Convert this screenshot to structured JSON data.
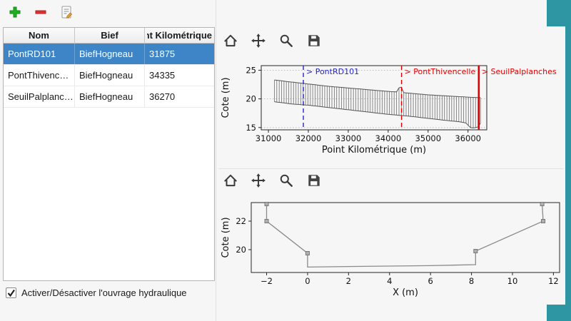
{
  "colors": {
    "accent": "#2e96a3",
    "selection": "#3d85c6",
    "marker_blue": "#2424d0",
    "marker_red": "#e00000"
  },
  "toolbar": {
    "buttons": [
      "add",
      "remove",
      "edit"
    ]
  },
  "table": {
    "columns": [
      "Nom",
      "Bief",
      "Point Kilométrique"
    ],
    "rows": [
      {
        "nom": "PontRD101",
        "bief": "BiefHogneau",
        "pk": "31875",
        "selected": true
      },
      {
        "nom": "PontThivenc…",
        "bief": "BiefHogneau",
        "pk": "34335",
        "selected": false
      },
      {
        "nom": "SeuilPalplanc…",
        "bief": "BiefHogneau",
        "pk": "36270",
        "selected": false
      }
    ]
  },
  "checkbox": {
    "label": "Activer/Désactiver l'ouvrage hydraulique",
    "checked": true
  },
  "plot_toolbar_icons": [
    "home",
    "pan",
    "zoom",
    "save"
  ],
  "chart_data": [
    {
      "type": "line",
      "title": "",
      "xlabel": "Point Kilométrique (m)",
      "ylabel": "Cote (m)",
      "xlim": [
        30820,
        36470
      ],
      "ylim": [
        14.6,
        25.8
      ],
      "xticks": [
        31000,
        32000,
        33000,
        34000,
        35000,
        36000
      ],
      "yticks": [
        15,
        20,
        25
      ],
      "grid": true,
      "legend": "none",
      "profile": {
        "x_start": 31150,
        "x_end": 36350,
        "step": 60,
        "top_envelope": [
          [
            31150,
            23.3
          ],
          [
            31500,
            23.0
          ],
          [
            32000,
            22.6
          ],
          [
            32500,
            22.2
          ],
          [
            33000,
            21.9
          ],
          [
            33500,
            21.6
          ],
          [
            34000,
            21.3
          ],
          [
            34250,
            21.2
          ],
          [
            34300,
            23.0
          ],
          [
            34360,
            21.1
          ],
          [
            35000,
            20.7
          ],
          [
            35500,
            20.5
          ],
          [
            36000,
            20.3
          ],
          [
            36350,
            20.2
          ]
        ],
        "bottom_envelope": [
          [
            31150,
            19.5
          ],
          [
            31600,
            19.1
          ],
          [
            32000,
            18.9
          ],
          [
            32500,
            18.5
          ],
          [
            33000,
            18.1
          ],
          [
            33500,
            17.7
          ],
          [
            34000,
            17.3
          ],
          [
            34500,
            17.0
          ],
          [
            35000,
            16.6
          ],
          [
            35500,
            16.2
          ],
          [
            35800,
            16.0
          ],
          [
            35950,
            15.8
          ],
          [
            36050,
            15.0
          ],
          [
            36150,
            14.9
          ],
          [
            36250,
            15.1
          ],
          [
            36350,
            16.2
          ]
        ]
      },
      "markers": [
        {
          "label": "> PontRD101",
          "x": 31875,
          "color": "#2424d0",
          "style": "dashed"
        },
        {
          "label": "> PontThivencelle",
          "x": 34335,
          "color": "#e00000",
          "style": "dashed"
        },
        {
          "label": "> SeuilPalplanches",
          "x": 36270,
          "color": "#e00000",
          "style": "solid"
        }
      ]
    },
    {
      "type": "line",
      "title": "",
      "xlabel": "X (m)",
      "ylabel": "Cote (m)",
      "xlim": [
        -2.75,
        12.3
      ],
      "ylim": [
        18.4,
        23.3
      ],
      "xticks": [
        -2,
        0,
        2,
        4,
        6,
        8,
        10,
        12
      ],
      "yticks": [
        20,
        22
      ],
      "grid": false,
      "legend": "none",
      "points": [
        [
          -2,
          23.2
        ],
        [
          -2,
          22.0
        ],
        [
          0,
          19.75
        ],
        [
          0,
          18.78
        ],
        [
          2,
          18.82
        ],
        [
          4,
          18.85
        ],
        [
          6,
          18.88
        ],
        [
          8.2,
          18.95
        ],
        [
          8.2,
          19.9
        ],
        [
          11.5,
          22.0
        ],
        [
          11.45,
          23.2
        ]
      ],
      "marker_points": [
        [
          -2,
          23.2
        ],
        [
          -2,
          22.0
        ],
        [
          0,
          19.75
        ],
        [
          8.2,
          19.9
        ],
        [
          11.5,
          22.0
        ],
        [
          11.45,
          23.2
        ]
      ]
    }
  ]
}
